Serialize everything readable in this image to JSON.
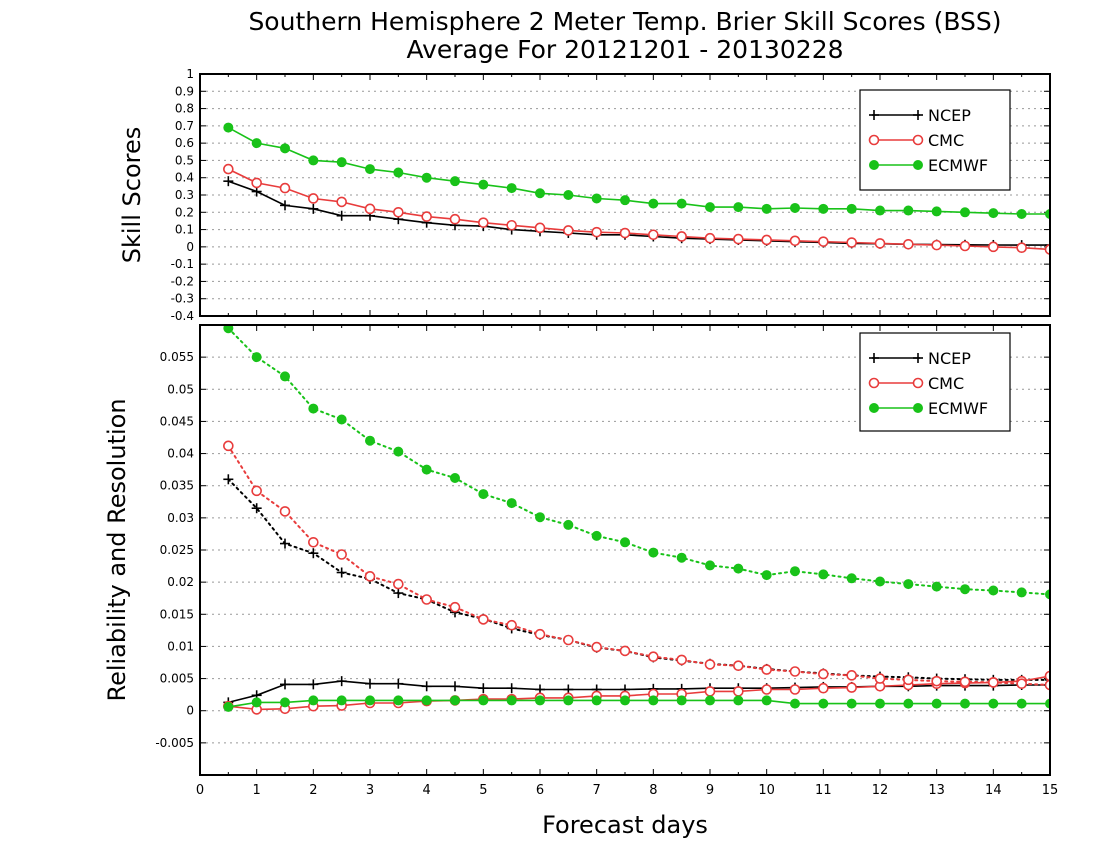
{
  "title_line1": "Southern Hemisphere 2 Meter Temp. Brier Skill Scores (BSS)",
  "title_line2": "Average For 20121201 - 20130228",
  "xlabel": "Forecast days",
  "colors": {
    "NCEP": "#000000",
    "CMC": "#e83c3c",
    "ECMWF": "#19c219"
  },
  "chart_data": [
    {
      "type": "line",
      "ylabel": "Skill Scores",
      "ylim": [
        -0.4,
        1.0
      ],
      "yticks": [
        -0.4,
        -0.3,
        -0.2,
        -0.1,
        0,
        0.1,
        0.2,
        0.3,
        0.4,
        0.5,
        0.6,
        0.7,
        0.8,
        0.9,
        1
      ],
      "ytick_labels": [
        "-0.4",
        "-0.3",
        "-0.2",
        "-0.1",
        "0",
        "0.1",
        "0.2",
        "0.3",
        "0.4",
        "0.5",
        "0.6",
        "0.7",
        "0.8",
        "0.9",
        "1"
      ],
      "xlim": [
        0,
        15
      ],
      "grid": true,
      "legend_position": "top-right",
      "legend": [
        "NCEP",
        "CMC",
        "ECMWF"
      ],
      "x": [
        0.5,
        1,
        1.5,
        2,
        2.5,
        3,
        3.5,
        4,
        4.5,
        5,
        5.5,
        6,
        6.5,
        7,
        7.5,
        8,
        8.5,
        9,
        9.5,
        10,
        10.5,
        11,
        11.5,
        12,
        12.5,
        13,
        13.5,
        14,
        14.5,
        15
      ],
      "series": [
        {
          "name": "NCEP",
          "marker": "plus",
          "style": "solid",
          "values": [
            0.38,
            0.32,
            0.24,
            0.22,
            0.18,
            0.18,
            0.16,
            0.14,
            0.125,
            0.12,
            0.1,
            0.09,
            0.08,
            0.07,
            0.07,
            0.06,
            0.05,
            0.045,
            0.04,
            0.035,
            0.03,
            0.025,
            0.02,
            0.018,
            0.015,
            0.013,
            0.012,
            0.011,
            0.01,
            0.01
          ]
        },
        {
          "name": "CMC",
          "marker": "circle-open",
          "style": "solid",
          "values": [
            0.45,
            0.37,
            0.34,
            0.28,
            0.26,
            0.22,
            0.2,
            0.175,
            0.16,
            0.14,
            0.125,
            0.11,
            0.095,
            0.085,
            0.08,
            0.07,
            0.06,
            0.05,
            0.045,
            0.04,
            0.035,
            0.03,
            0.025,
            0.02,
            0.015,
            0.01,
            0.005,
            0.0,
            -0.005,
            -0.015
          ]
        },
        {
          "name": "ECMWF",
          "marker": "circle-filled",
          "style": "solid",
          "values": [
            0.69,
            0.6,
            0.57,
            0.5,
            0.49,
            0.45,
            0.43,
            0.4,
            0.38,
            0.36,
            0.34,
            0.31,
            0.3,
            0.28,
            0.27,
            0.25,
            0.25,
            0.23,
            0.23,
            0.22,
            0.225,
            0.22,
            0.22,
            0.21,
            0.21,
            0.205,
            0.2,
            0.195,
            0.19,
            0.19
          ]
        }
      ]
    },
    {
      "type": "line",
      "ylabel": "Reliability and Resolution",
      "ylim": [
        -0.01,
        0.06
      ],
      "yticks": [
        -0.005,
        0,
        0.005,
        0.01,
        0.015,
        0.02,
        0.025,
        0.03,
        0.035,
        0.04,
        0.045,
        0.05,
        0.055
      ],
      "ytick_labels": [
        "-0.005",
        "0",
        "0.005",
        "0.01",
        "0.015",
        "0.02",
        "0.025",
        "0.03",
        "0.035",
        "0.04",
        "0.045",
        "0.05",
        "0.055"
      ],
      "xlim": [
        0,
        15
      ],
      "xticks": [
        0,
        1,
        2,
        3,
        4,
        5,
        6,
        7,
        8,
        9,
        10,
        11,
        12,
        13,
        14,
        15
      ],
      "xtick_labels": [
        "0",
        "1",
        "2",
        "3",
        "4",
        "5",
        "6",
        "7",
        "8",
        "9",
        "10",
        "11",
        "12",
        "13",
        "14",
        "15"
      ],
      "grid": true,
      "legend_position": "top-right",
      "legend": [
        "NCEP",
        "CMC",
        "ECMWF"
      ],
      "x": [
        0.5,
        1,
        1.5,
        2,
        2.5,
        3,
        3.5,
        4,
        4.5,
        5,
        5.5,
        6,
        6.5,
        7,
        7.5,
        8,
        8.5,
        9,
        9.5,
        10,
        10.5,
        11,
        11.5,
        12,
        12.5,
        13,
        13.5,
        14,
        14.5,
        15
      ],
      "series": [
        {
          "name": "NCEP",
          "component": "reliability",
          "marker": "plus",
          "style": "solid",
          "values": [
            0.0013,
            0.0024,
            0.0041,
            0.0041,
            0.0046,
            0.0042,
            0.0042,
            0.0038,
            0.0038,
            0.0035,
            0.0035,
            0.0033,
            0.0033,
            0.0033,
            0.0033,
            0.0034,
            0.0034,
            0.0035,
            0.0035,
            0.0035,
            0.0036,
            0.0037,
            0.0037,
            0.0038,
            0.0038,
            0.0039,
            0.0039,
            0.0039,
            0.004,
            0.004
          ]
        },
        {
          "name": "NCEP",
          "component": "resolution",
          "marker": "plus",
          "style": "dotted",
          "values": [
            0.036,
            0.0315,
            0.026,
            0.0245,
            0.0215,
            0.0205,
            0.0183,
            0.0173,
            0.0153,
            0.0143,
            0.0128,
            0.0118,
            0.011,
            0.0098,
            0.0093,
            0.0083,
            0.0078,
            0.0073,
            0.007,
            0.0065,
            0.0061,
            0.0058,
            0.0055,
            0.0053,
            0.0052,
            0.005,
            0.0049,
            0.0048,
            0.0048,
            0.0048
          ]
        },
        {
          "name": "CMC",
          "component": "reliability",
          "marker": "circle-open",
          "style": "solid",
          "values": [
            0.0007,
            0.0002,
            0.0003,
            0.0007,
            0.0008,
            0.0012,
            0.0012,
            0.0015,
            0.0016,
            0.0018,
            0.0018,
            0.002,
            0.002,
            0.0023,
            0.0023,
            0.0026,
            0.0026,
            0.003,
            0.003,
            0.0033,
            0.0033,
            0.0035,
            0.0036,
            0.0038,
            0.004,
            0.0042,
            0.0043,
            0.0044,
            0.0046,
            0.0054
          ]
        },
        {
          "name": "CMC",
          "component": "resolution",
          "marker": "circle-open",
          "style": "dotted",
          "values": [
            0.0412,
            0.0342,
            0.031,
            0.0262,
            0.0243,
            0.0209,
            0.0197,
            0.0173,
            0.0161,
            0.0142,
            0.0133,
            0.0119,
            0.011,
            0.0099,
            0.0093,
            0.0084,
            0.0079,
            0.0072,
            0.007,
            0.0064,
            0.0061,
            0.0057,
            0.0055,
            0.005,
            0.0048,
            0.0046,
            0.0045,
            0.0044,
            0.0042,
            0.004
          ]
        },
        {
          "name": "ECMWF",
          "component": "reliability",
          "marker": "circle-filled",
          "style": "solid",
          "values": [
            0.0006,
            0.0013,
            0.0013,
            0.0016,
            0.0016,
            0.0016,
            0.0016,
            0.0016,
            0.0016,
            0.0016,
            0.0016,
            0.0016,
            0.0016,
            0.0016,
            0.0016,
            0.0016,
            0.0016,
            0.0016,
            0.0016,
            0.0016,
            0.0011,
            0.0011,
            0.0011,
            0.0011,
            0.0011,
            0.0011,
            0.0011,
            0.0011,
            0.0011,
            0.0011
          ]
        },
        {
          "name": "ECMWF",
          "component": "resolution",
          "marker": "circle-filled",
          "style": "dotted",
          "values": [
            0.0595,
            0.055,
            0.052,
            0.047,
            0.0453,
            0.042,
            0.0403,
            0.0375,
            0.0362,
            0.0337,
            0.0323,
            0.0301,
            0.0289,
            0.0272,
            0.0262,
            0.0246,
            0.0238,
            0.0226,
            0.0221,
            0.0211,
            0.0217,
            0.0212,
            0.0206,
            0.0201,
            0.0197,
            0.0193,
            0.0189,
            0.0187,
            0.0184,
            0.0181
          ]
        }
      ]
    }
  ]
}
